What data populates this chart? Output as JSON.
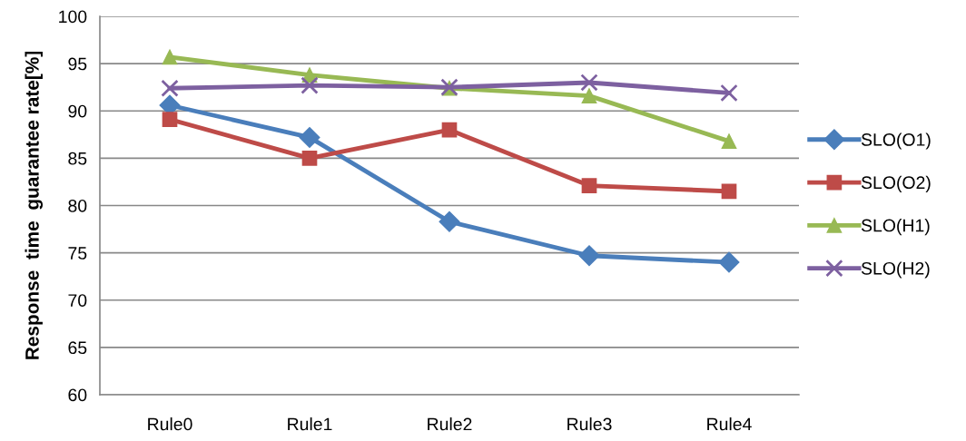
{
  "chart_data": {
    "type": "line",
    "ylabel": "Response  time  guarantee rate[%]",
    "categories": [
      "Rule0",
      "Rule1",
      "Rule2",
      "Rule3",
      "Rule4"
    ],
    "series": [
      {
        "name": "SLO(O1)",
        "color": "#4a7ebb",
        "marker": "diamond",
        "values": [
          90.6,
          87.2,
          78.3,
          74.7,
          74.0
        ]
      },
      {
        "name": "SLO(O2)",
        "color": "#be4b48",
        "marker": "square",
        "values": [
          89.1,
          85.0,
          88.0,
          82.1,
          81.5
        ]
      },
      {
        "name": "SLO(H1)",
        "color": "#98b954",
        "marker": "triangle",
        "values": [
          95.7,
          93.8,
          92.4,
          91.6,
          86.8
        ]
      },
      {
        "name": "SLO(H2)",
        "color": "#7d60a0",
        "marker": "cross",
        "values": [
          92.4,
          92.7,
          92.5,
          93.0,
          91.9
        ]
      }
    ],
    "ylim": [
      60,
      100
    ],
    "yticks": [
      60,
      65,
      70,
      75,
      80,
      85,
      90,
      95,
      100
    ],
    "grid": "y",
    "legend": "right",
    "line_style": "solid"
  }
}
